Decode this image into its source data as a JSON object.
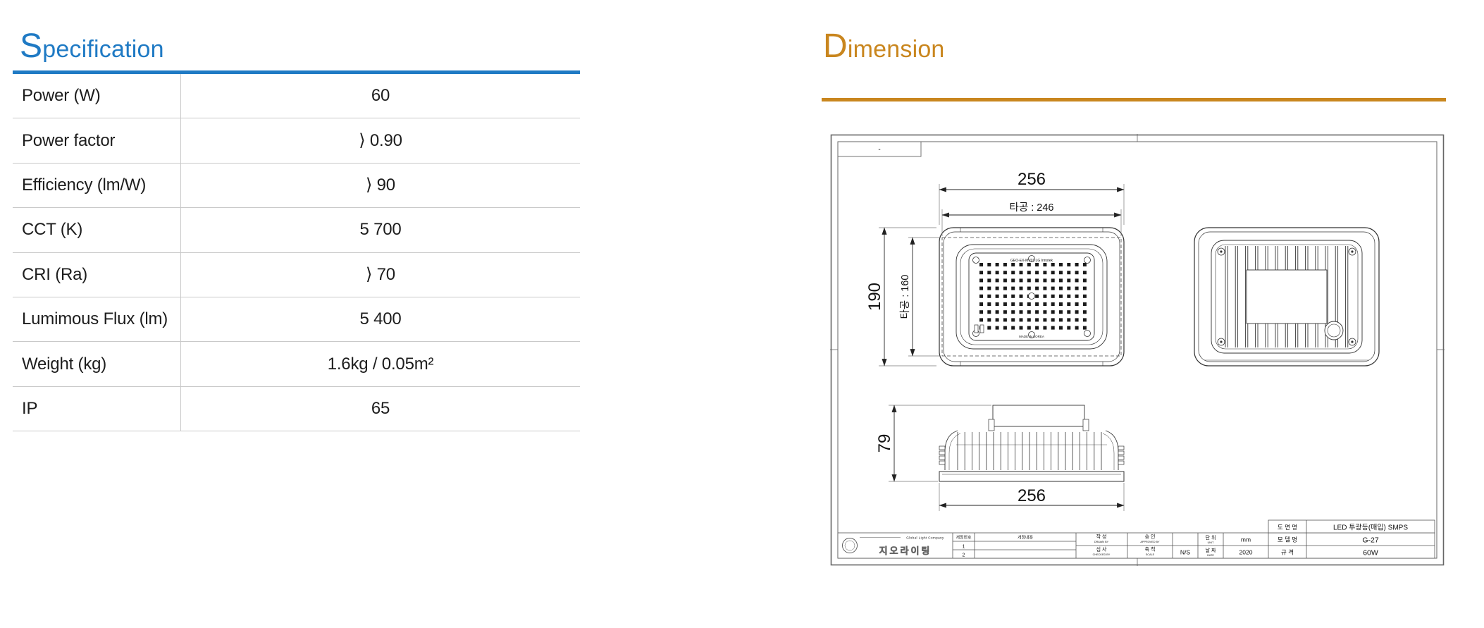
{
  "spec": {
    "title": "Specification",
    "accent": "#1F7AC4",
    "rows": [
      {
        "label": "Power (W)",
        "value": "60"
      },
      {
        "label": "Power factor",
        "value": "⟩ 0.90"
      },
      {
        "label": "Efficiency (lm/W)",
        "value": "⟩ 90"
      },
      {
        "label": "CCT (K)",
        "value": "5 700"
      },
      {
        "label": "CRI (Ra)",
        "value": "⟩ 70"
      },
      {
        "label": "Lumimous Flux (lm)",
        "value": "5 400"
      },
      {
        "label": "Weight (kg)",
        "value": "1.6kg / 0.05m²"
      },
      {
        "label": "IP",
        "value": "65"
      }
    ]
  },
  "dim": {
    "title": "Dimension",
    "accent": "#C9861E",
    "front": {
      "width": "256",
      "cutout_width": "타공 : 246",
      "height": "190",
      "cutout_height": "타공 : 160",
      "marking": "GEO-EX-MV01   LG Innotek",
      "made_in": "MADE IN KOREA"
    },
    "side": {
      "height": "79",
      "width": "256"
    },
    "sheet": {
      "corner_mark": "-"
    },
    "block": {
      "drawing_name_label": "도 면 명",
      "drawing_name": "LED 투광등(매입) SMPS",
      "model_label": "모 델 명",
      "model": "G-27",
      "size_label": "규  격",
      "size": "60W",
      "unit_label": "단 위",
      "unit_sub": "UNIT",
      "unit": "mm",
      "date_label": "날 짜",
      "date_sub": "DATE",
      "date": "2020",
      "scale_label": "축 척",
      "scale_sub": "SCALE",
      "scale": "N/S",
      "drawn_label": "작 성",
      "drawn_sub": "DRAWN BY",
      "checked_label": "심 사",
      "checked_sub": "CHECKED BY",
      "approved_label": "승 인",
      "approved_sub": "APPROVED BY",
      "rev_no": "개정번호",
      "rev_content": "개정내용",
      "rev1": "1",
      "rev2": "2",
      "company": "Global Light Company",
      "company_kr": "지오라이팅"
    }
  }
}
